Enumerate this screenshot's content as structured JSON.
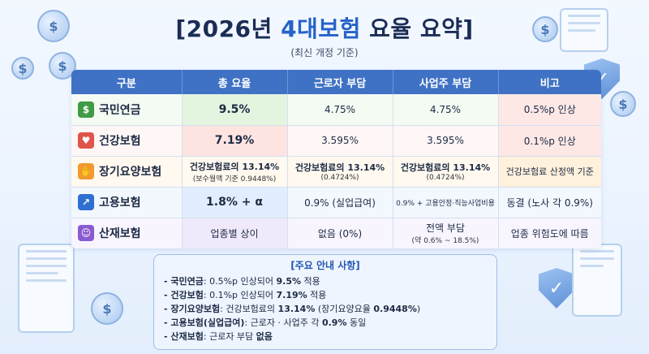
{
  "header": {
    "title_prefix": "[2026년 ",
    "title_highlight": "4대보험",
    "title_suffix": " 요율 요약]",
    "subtitle": "(최신 개정 기준)"
  },
  "table": {
    "headers": [
      "구분",
      "총 요율",
      "근로자 부담",
      "사업주 부담",
      "비고"
    ],
    "rows": [
      {
        "icon": "pension-icon",
        "icon_glyph": "$",
        "icon_color": "#3f9b45",
        "name": "국민연금",
        "total": "9.5%",
        "employee": "4.75%",
        "employer": "4.75%",
        "note": "0.5%p 인상"
      },
      {
        "icon": "heart-pulse-icon",
        "icon_glyph": "♥",
        "icon_color": "#e0544a",
        "name": "건강보험",
        "total": "7.19%",
        "employee": "3.595%",
        "employer": "3.595%",
        "note": "0.1%p 인상"
      },
      {
        "icon": "care-hands-icon",
        "icon_glyph": "✋",
        "icon_color": "#f29a2e",
        "name": "장기요양보험",
        "total": "건강보험료의 13.14%",
        "total_sub": "(보수월액 기준 0.9448%)",
        "employee": "건강보험료의 13.14%",
        "employee_sub": "(0.4724%)",
        "employer": "건강보험료의 13.14%",
        "employer_sub": "(0.4724%)",
        "note": "건강보험료 산정액 기준"
      },
      {
        "icon": "growth-chart-icon",
        "icon_glyph": "↗",
        "icon_color": "#2f6fd0",
        "name": "고용보험",
        "total": "1.8% + α",
        "employee": "0.9% (실업급여)",
        "employer": "0.9% + 고용안정·직능사업비용",
        "note": "동결 (노사 각 0.9%)"
      },
      {
        "icon": "worker-icon",
        "icon_glyph": "☺",
        "icon_color": "#8a5ad1",
        "name": "산재보험",
        "total": "업종별 상이",
        "employee": "없음 (0%)",
        "employer": "전액 부담",
        "employer_sub": "(약 0.6% ~ 18.5%)",
        "note": "업종 위험도에 따름"
      }
    ]
  },
  "notice": {
    "title": "[주요 안내 사항]",
    "items": [
      {
        "label": "- 국민연금",
        "text1": ": 0.5%p 인상되어 ",
        "bold": "9.5%",
        "text2": " 적용"
      },
      {
        "label": "- 건강보험",
        "text1": ": 0.1%p 인상되어 ",
        "bold": "7.19%",
        "text2": " 적용"
      },
      {
        "label": "- 장기요양보험",
        "text1": ": 건강보험료의 ",
        "bold": "13.14%",
        "text2": " (장기요양요율 ",
        "bold2": "0.9448%",
        "text3": ")"
      },
      {
        "label": "- 고용보험(실업급여)",
        "text1": ": 근로자 · 사업주 각 ",
        "bold": "0.9%",
        "text2": " 동일"
      },
      {
        "label": "- 산재보험",
        "text1": ": 근로자 부담 ",
        "bold": "없음",
        "text2": ""
      }
    ]
  },
  "decor": {
    "coin_symbol": "$",
    "shield_symbol": "✓"
  }
}
